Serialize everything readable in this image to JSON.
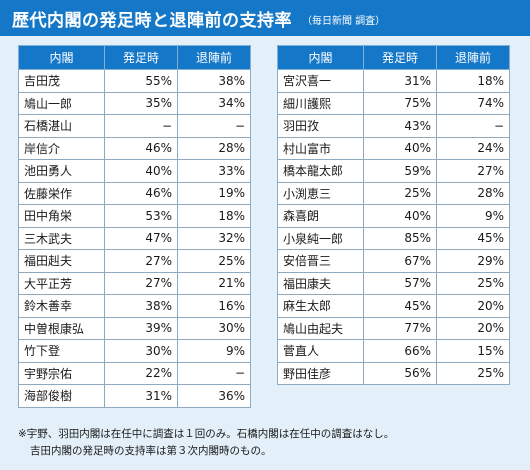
{
  "title": "歴代内閣の発足時と退陣前の支持率",
  "subtitle": "（毎日新聞 調査）",
  "chart_data": {
    "type": "table",
    "columns": [
      "内閣",
      "発足時",
      "退陣前"
    ],
    "rows": [
      {
        "name": "吉田茂",
        "start": "55%",
        "end": "38%"
      },
      {
        "name": "鳩山一郎",
        "start": "35%",
        "end": "34%"
      },
      {
        "name": "石橋湛山",
        "start": "−",
        "end": "−"
      },
      {
        "name": "岸信介",
        "start": "46%",
        "end": "28%"
      },
      {
        "name": "池田勇人",
        "start": "40%",
        "end": "33%"
      },
      {
        "name": "佐藤栄作",
        "start": "46%",
        "end": "19%"
      },
      {
        "name": "田中角栄",
        "start": "53%",
        "end": "18%"
      },
      {
        "name": "三木武夫",
        "start": "47%",
        "end": "32%"
      },
      {
        "name": "福田赳夫",
        "start": "27%",
        "end": "25%"
      },
      {
        "name": "大平正芳",
        "start": "27%",
        "end": "21%"
      },
      {
        "name": "鈴木善幸",
        "start": "38%",
        "end": "16%"
      },
      {
        "name": "中曽根康弘",
        "start": "39%",
        "end": "30%"
      },
      {
        "name": "竹下登",
        "start": "30%",
        "end": "9%"
      },
      {
        "name": "宇野宗佑",
        "start": "22%",
        "end": "−"
      },
      {
        "name": "海部俊樹",
        "start": "31%",
        "end": "36%"
      },
      {
        "name": "宮沢喜一",
        "start": "31%",
        "end": "18%"
      },
      {
        "name": "細川護熙",
        "start": "75%",
        "end": "74%"
      },
      {
        "name": "羽田孜",
        "start": "43%",
        "end": "−"
      },
      {
        "name": "村山富市",
        "start": "40%",
        "end": "24%"
      },
      {
        "name": "橋本龍太郎",
        "start": "59%",
        "end": "27%"
      },
      {
        "name": "小渕恵三",
        "start": "25%",
        "end": "28%"
      },
      {
        "name": "森喜朗",
        "start": "40%",
        "end": "9%"
      },
      {
        "name": "小泉純一郎",
        "start": "85%",
        "end": "45%"
      },
      {
        "name": "安倍晋三",
        "start": "67%",
        "end": "29%"
      },
      {
        "name": "福田康夫",
        "start": "57%",
        "end": "25%"
      },
      {
        "name": "麻生太郎",
        "start": "45%",
        "end": "20%"
      },
      {
        "name": "鳩山由起夫",
        "start": "77%",
        "end": "20%"
      },
      {
        "name": "菅直人",
        "start": "66%",
        "end": "15%"
      },
      {
        "name": "野田佳彦",
        "start": "56%",
        "end": "25%"
      }
    ]
  },
  "footnote": {
    "line1": "※宇野、羽田内閣は在任中に調査は１回のみ。石橋内閣は在任中の調査はなし。",
    "line2": "吉田内閣の発足時の支持率は第３次内閣時のもの。"
  },
  "colors": {
    "header_blue": "#1477c8",
    "background": "#e3f0f9"
  }
}
